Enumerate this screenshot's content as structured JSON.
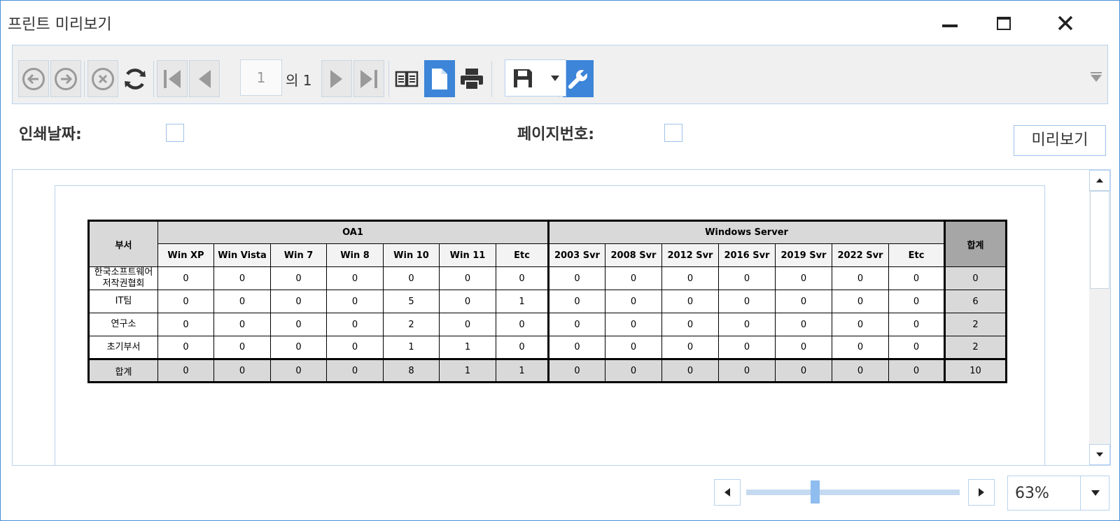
{
  "window": {
    "title": "프린트 미리보기",
    "accent_color": "#3c85d8"
  },
  "toolbar": {
    "buttons": [
      "back-icon",
      "forward-icon",
      "stop-icon",
      "refresh-icon",
      "first-page-icon",
      "previous-page-icon",
      "next-page-icon",
      "last-page-icon",
      "two-page-view-icon",
      "single-page-view-icon",
      "print-icon",
      "save-icon",
      "settings-wrench-icon"
    ],
    "page_number": "1",
    "page_of": "의 1"
  },
  "options": {
    "print_date_label": "인쇄날짜:",
    "page_number_label": "페이지번호:",
    "print_date_checked": false,
    "page_number_checked": false,
    "preview_button": "미리보기"
  },
  "report": {
    "dept_header": "부서",
    "group1": "OA1",
    "group2": "Windows Server",
    "total_header": "합계",
    "columns": [
      "Win XP",
      "Win Vista",
      "Win 7",
      "Win 8",
      "Win 10",
      "Win 11",
      "Etc",
      "2003 Svr",
      "2008 Svr",
      "2012 Svr",
      "2016 Svr",
      "2019 Svr",
      "2022 Svr",
      "Etc"
    ],
    "rows": [
      {
        "dept": [
          "한국소프트웨어",
          "저작권협회"
        ],
        "values": [
          "0",
          "0",
          "0",
          "0",
          "0",
          "0",
          "0",
          "0",
          "0",
          "0",
          "0",
          "0",
          "0",
          "0"
        ],
        "total": "0"
      },
      {
        "dept": [
          "IT팀"
        ],
        "values": [
          "0",
          "0",
          "0",
          "0",
          "5",
          "0",
          "1",
          "0",
          "0",
          "0",
          "0",
          "0",
          "0",
          "0"
        ],
        "total": "6"
      },
      {
        "dept": [
          "연구소"
        ],
        "values": [
          "0",
          "0",
          "0",
          "0",
          "2",
          "0",
          "0",
          "0",
          "0",
          "0",
          "0",
          "0",
          "0",
          "0"
        ],
        "total": "2"
      },
      {
        "dept": [
          "초기부서"
        ],
        "values": [
          "0",
          "0",
          "0",
          "0",
          "1",
          "1",
          "0",
          "0",
          "0",
          "0",
          "0",
          "0",
          "0",
          "0"
        ],
        "total": "2"
      }
    ],
    "sum_row": {
      "label": "합계",
      "values": [
        "0",
        "0",
        "0",
        "0",
        "8",
        "1",
        "1",
        "0",
        "0",
        "0",
        "0",
        "0",
        "0",
        "0"
      ],
      "total": "10"
    }
  },
  "zoom": {
    "value": "63%",
    "slider_fraction": 0.32
  }
}
